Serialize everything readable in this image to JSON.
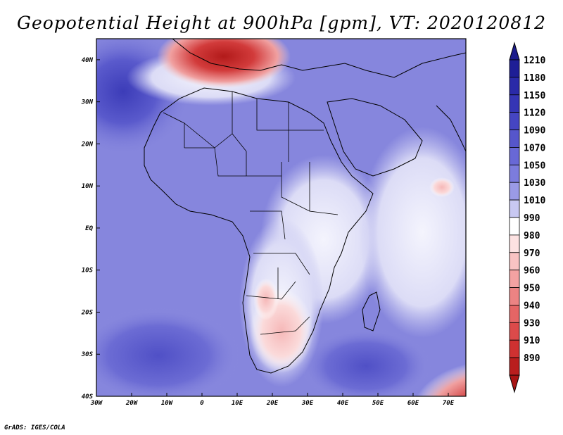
{
  "title": "Geopotential Height at 900hPa [gpm], VT: 2020120812",
  "credit": "GrADS: IGES/COLA",
  "map": {
    "lon_range": [
      -30,
      75
    ],
    "lat_range": [
      -40,
      45
    ],
    "lon_ticks": [
      {
        "v": -30,
        "label": "30W"
      },
      {
        "v": -20,
        "label": "20W"
      },
      {
        "v": -10,
        "label": "10W"
      },
      {
        "v": 0,
        "label": "0"
      },
      {
        "v": 10,
        "label": "10E"
      },
      {
        "v": 20,
        "label": "20E"
      },
      {
        "v": 30,
        "label": "30E"
      },
      {
        "v": 40,
        "label": "40E"
      },
      {
        "v": 50,
        "label": "50E"
      },
      {
        "v": 60,
        "label": "60E"
      },
      {
        "v": 70,
        "label": "70E"
      }
    ],
    "lat_ticks": [
      {
        "v": 40,
        "label": "40N"
      },
      {
        "v": 30,
        "label": "30N"
      },
      {
        "v": 20,
        "label": "20N"
      },
      {
        "v": 10,
        "label": "10N"
      },
      {
        "v": 0,
        "label": "EQ"
      },
      {
        "v": -10,
        "label": "10S"
      },
      {
        "v": -20,
        "label": "20S"
      },
      {
        "v": -30,
        "label": "30S"
      },
      {
        "v": -40,
        "label": "40S"
      }
    ]
  },
  "colorbar": {
    "levels": [
      {
        "label": "1210",
        "color": "#1e1e96"
      },
      {
        "label": "1180",
        "color": "#2a2aa8"
      },
      {
        "label": "1150",
        "color": "#3535b5"
      },
      {
        "label": "1120",
        "color": "#4545c2"
      },
      {
        "label": "1090",
        "color": "#5656cb"
      },
      {
        "label": "1070",
        "color": "#6868d6"
      },
      {
        "label": "1050",
        "color": "#7c7cdd"
      },
      {
        "label": "1030",
        "color": "#9a9ae6"
      },
      {
        "label": "1010",
        "color": "#c8c8f2"
      },
      {
        "label": "990",
        "color": "#ffffff"
      },
      {
        "label": "980",
        "color": "#fde2e2"
      },
      {
        "label": "970",
        "color": "#f9c3c3"
      },
      {
        "label": "960",
        "color": "#f3a2a2"
      },
      {
        "label": "950",
        "color": "#ec8383"
      },
      {
        "label": "940",
        "color": "#e56565"
      },
      {
        "label": "930",
        "color": "#dc4a4a"
      },
      {
        "label": "910",
        "color": "#cf3131"
      },
      {
        "label": "890",
        "color": "#b91e1e"
      }
    ],
    "top_arrow_color": "#1c1c8c",
    "bottom_arrow_color": "#a81414"
  }
}
